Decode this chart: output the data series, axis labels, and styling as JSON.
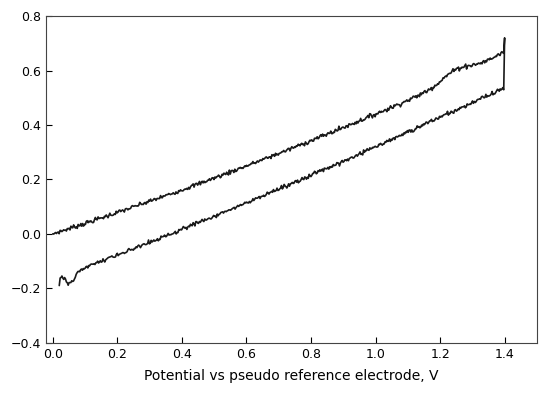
{
  "xlabel": "Potential vs pseudo reference electrode, V",
  "ylabel": "",
  "xlim": [
    -0.02,
    1.5
  ],
  "ylim": [
    -0.4,
    0.8
  ],
  "xticks": [
    0.0,
    0.2,
    0.4,
    0.6,
    0.8,
    1.0,
    1.2,
    1.4
  ],
  "yticks": [
    -0.4,
    -0.2,
    0.0,
    0.2,
    0.4,
    0.6,
    0.8
  ],
  "line_color": "#1a1a1a",
  "line_width": 1.2,
  "background_color": "#ffffff",
  "xlabel_fontsize": 10,
  "tick_fontsize": 9,
  "noise_scale_fwd": 0.004,
  "noise_scale_rev": 0.004
}
